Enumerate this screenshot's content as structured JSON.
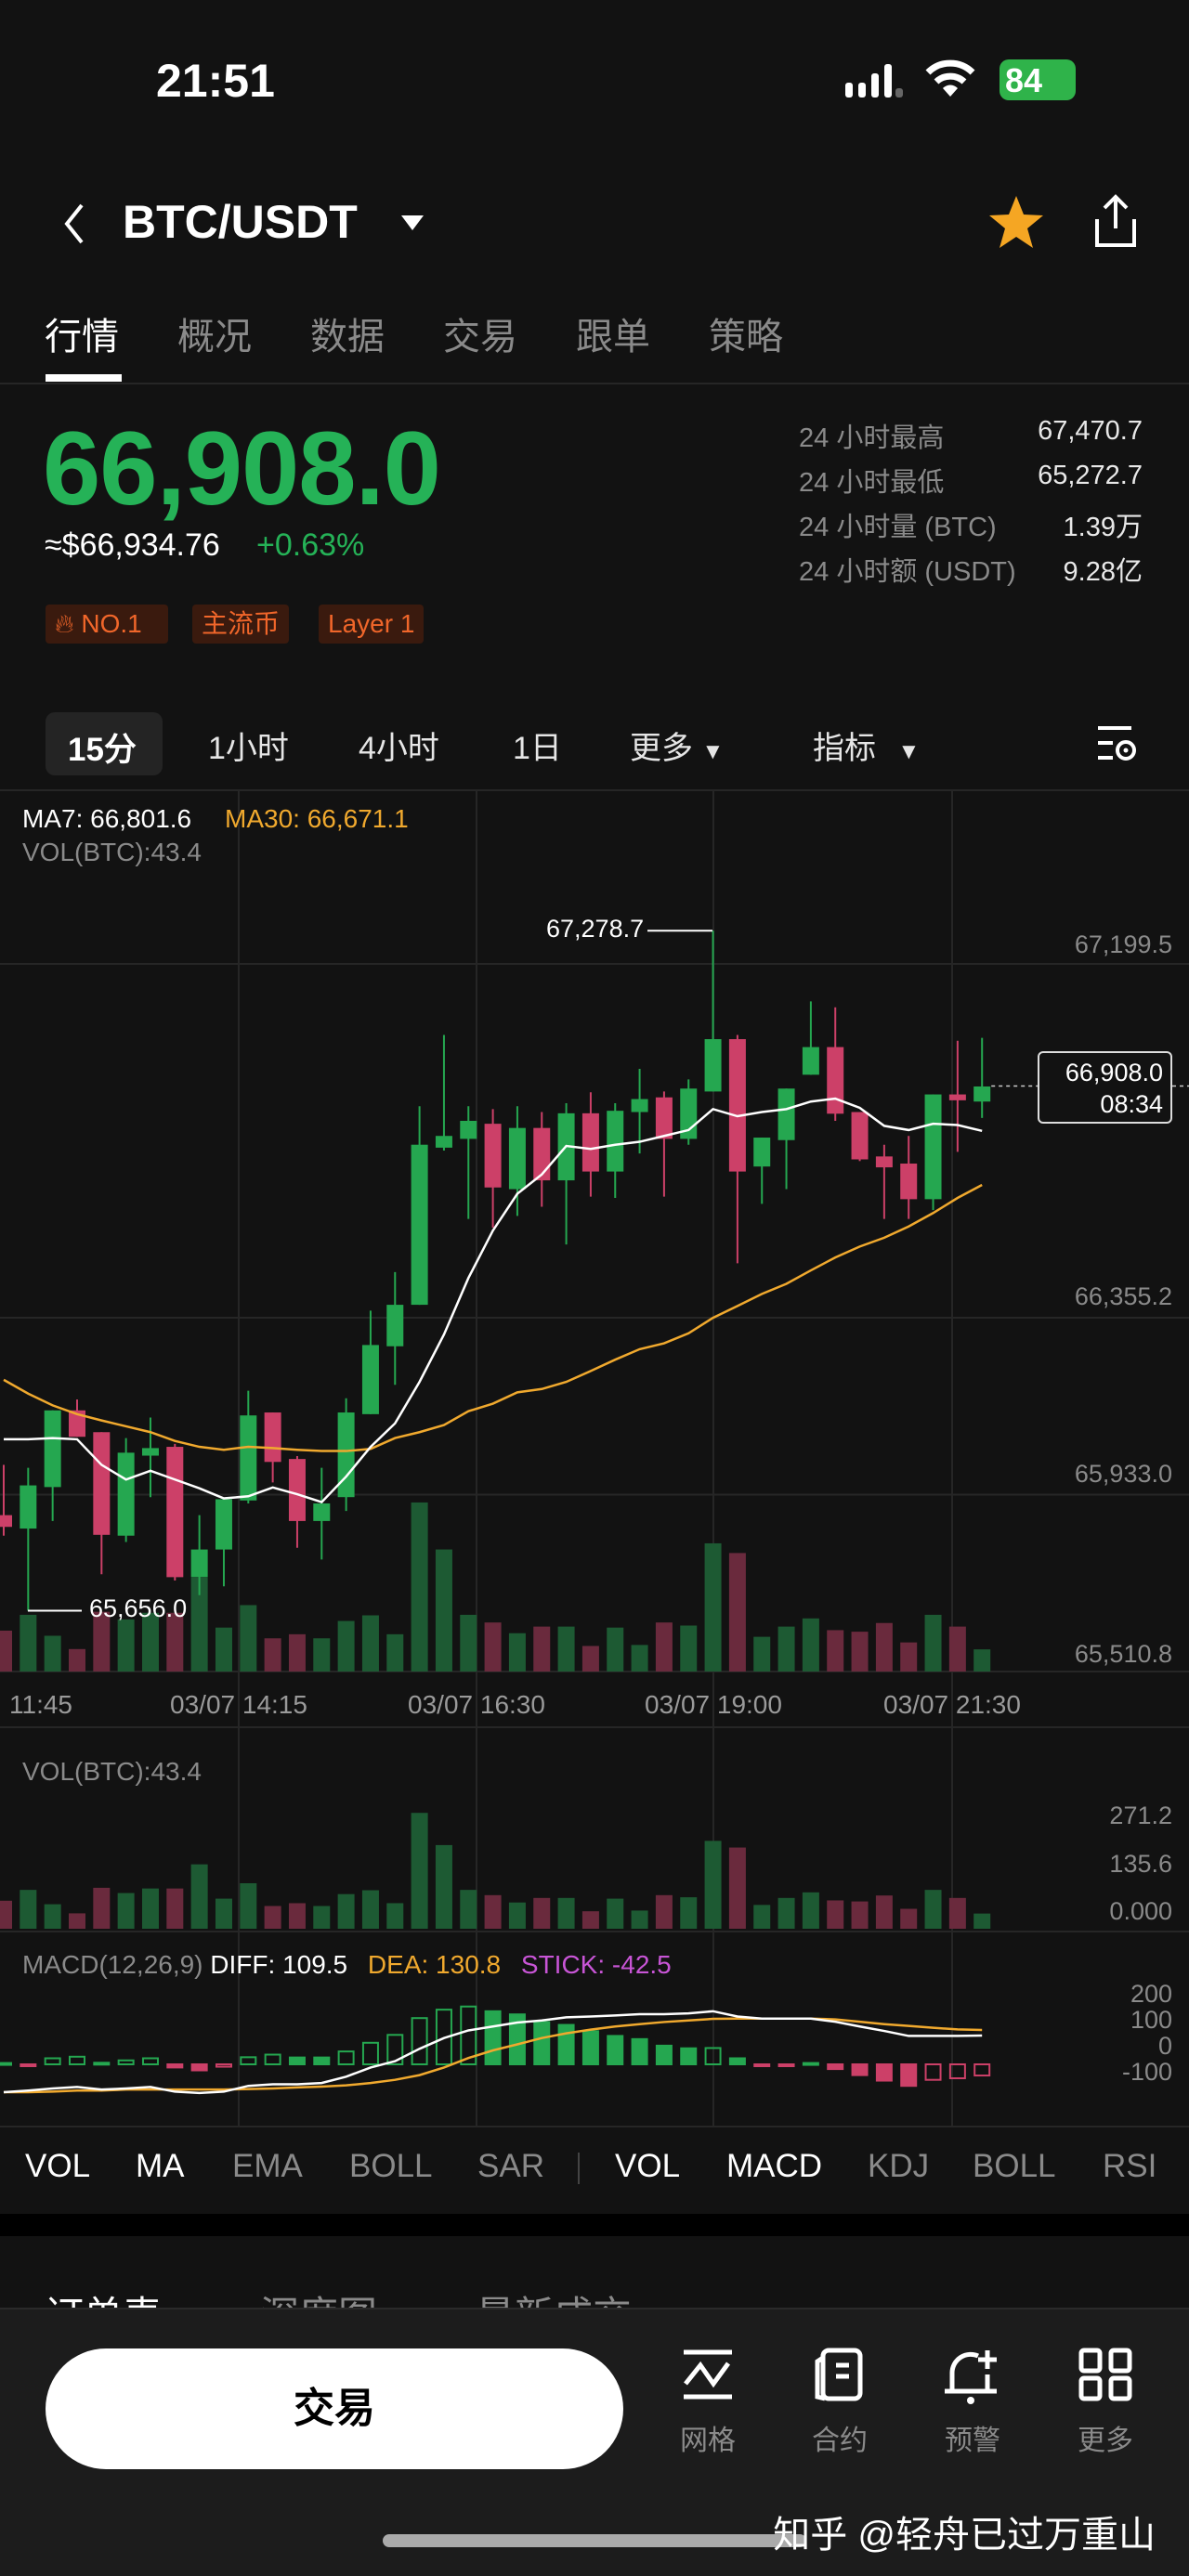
{
  "status_bar": {
    "time": "21:51",
    "battery": "84",
    "icons": [
      "signal-icon",
      "wifi-icon",
      "battery-charging-icon"
    ]
  },
  "header": {
    "title": "BTC/USDT",
    "icons": [
      "back-chevron-icon",
      "caret-down-icon",
      "star-icon",
      "share-icon"
    ],
    "star_color": "#f5a623"
  },
  "tabs": [
    {
      "label": "行情",
      "active": true
    },
    {
      "label": "概况"
    },
    {
      "label": "数据"
    },
    {
      "label": "交易"
    },
    {
      "label": "跟单"
    },
    {
      "label": "策略"
    }
  ],
  "ticker": {
    "last_price": "66,908.0",
    "usd_approx": "≈$66,934.76",
    "change_pct": "+0.63%",
    "tags": [
      "NO.1",
      "主流币",
      "Layer 1"
    ],
    "stats": [
      {
        "label": "24 小时最高",
        "value": "67,470.7"
      },
      {
        "label": "24 小时最低",
        "value": "65,272.7"
      },
      {
        "label": "24 小时量 (BTC)",
        "value": "1.39万"
      },
      {
        "label": "24 小时额 (USDT)",
        "value": "9.28亿"
      }
    ]
  },
  "timeframes": {
    "items": [
      "15分",
      "1小时",
      "4小时",
      "1日"
    ],
    "active": "15分",
    "more": "更多",
    "indicators": "指标"
  },
  "legend": {
    "ma7": "MA7: 66,801.6",
    "ma30": "MA30: 66,671.1",
    "vol": "VOL(BTC):43.4",
    "vol_panel": "VOL(BTC):43.4",
    "macd_name": "MACD(12,26,9)",
    "diff": "DIFF: 109.5",
    "dea": "DEA: 130.8",
    "stick": "STICK: -42.5"
  },
  "chart_data": {
    "type": "candlestick",
    "price_axis_ticks": [
      "67,199.5",
      "66,355.2",
      "65,933.0",
      "65,510.8"
    ],
    "price_axis_values": [
      67199.5,
      66355.2,
      65933.0,
      65510.8
    ],
    "x_tick_labels": [
      "11:45",
      "03/07 14:15",
      "03/07 16:30",
      "03/07 19:00",
      "03/07 21:30"
    ],
    "high_marker": "67,278.7",
    "low_marker": "65,656.0",
    "current_price_box": {
      "price": "66,908.0",
      "countdown": "08:34",
      "value": 66908.0
    },
    "ohlc": [
      [
        65884,
        66004,
        65835,
        65856
      ],
      [
        65852,
        65997,
        65656,
        65955
      ],
      [
        65951,
        66134,
        65870,
        66134
      ],
      [
        66134,
        66160,
        66071,
        66071
      ],
      [
        66082,
        66082,
        65743,
        65837
      ],
      [
        65835,
        66068,
        65820,
        66033
      ],
      [
        66026,
        66117,
        65927,
        66044
      ],
      [
        66047,
        66054,
        65728,
        65736
      ],
      [
        65736,
        65884,
        65693,
        65802
      ],
      [
        65802,
        65922,
        65714,
        65922
      ],
      [
        65919,
        66181,
        65912,
        66122
      ],
      [
        66129,
        66129,
        65962,
        66011
      ],
      [
        66018,
        66025,
        65806,
        65870
      ],
      [
        65870,
        65997,
        65778,
        65912
      ],
      [
        65927,
        66163,
        65894,
        66129
      ],
      [
        66125,
        66372,
        66125,
        66290
      ],
      [
        66287,
        66464,
        66195,
        66386
      ],
      [
        66386,
        66860,
        66386,
        66768
      ],
      [
        66761,
        67030,
        66754,
        66789
      ],
      [
        66782,
        66860,
        66591,
        66825
      ],
      [
        66818,
        66853,
        66570,
        66666
      ],
      [
        66662,
        66860,
        66598,
        66808
      ],
      [
        66808,
        66846,
        66620,
        66683
      ],
      [
        66683,
        66867,
        66530,
        66843
      ],
      [
        66843,
        66893,
        66644,
        66704
      ],
      [
        66704,
        66867,
        66641,
        66849
      ],
      [
        66846,
        66949,
        66747,
        66877
      ],
      [
        66881,
        66895,
        66644,
        66782
      ],
      [
        66782,
        66924,
        66768,
        66902
      ],
      [
        66895,
        67279,
        66895,
        67020
      ],
      [
        67020,
        67030,
        66485,
        66704
      ],
      [
        66716,
        66785,
        66627,
        66785
      ],
      [
        66779,
        66902,
        66662,
        66902
      ],
      [
        66935,
        67110,
        66935,
        67001
      ],
      [
        67001,
        67096,
        66825,
        66842
      ],
      [
        66846,
        66846,
        66729,
        66733
      ],
      [
        66740,
        66768,
        66591,
        66714
      ],
      [
        66723,
        66789,
        66591,
        66638
      ],
      [
        66638,
        66888,
        66612,
        66888
      ],
      [
        66888,
        67016,
        66751,
        66874
      ],
      [
        66871,
        67023,
        66832,
        66907
      ]
    ],
    "ma7": [
      66065,
      66065,
      66068,
      66065,
      66004,
      65969,
      65990,
      65969,
      65948,
      65924,
      65929,
      65950,
      65934,
      65915,
      65976,
      66047,
      66103,
      66202,
      66315,
      66450,
      66563,
      66651,
      66697,
      66765,
      66758,
      66768,
      66775,
      66789,
      66803,
      66853,
      66836,
      66846,
      66853,
      66871,
      66878,
      66856,
      66813,
      66803,
      66818,
      66815,
      66801
    ],
    "ma30": [
      66207,
      66174,
      66146,
      66125,
      66110,
      66096,
      66082,
      66061,
      66047,
      66040,
      66047,
      66044,
      66040,
      66037,
      66037,
      66042,
      66068,
      66082,
      66099,
      66132,
      66150,
      66177,
      66185,
      66202,
      66228,
      66255,
      66280,
      66294,
      66318,
      66355,
      66383,
      66412,
      66436,
      66468,
      66499,
      66525,
      66546,
      66573,
      66605,
      66641,
      66672
    ],
    "volume": [
      80,
      111,
      70,
      44,
      117,
      102,
      115,
      115,
      184,
      86,
      130,
      65,
      73,
      65,
      99,
      110,
      73,
      331,
      239,
      111,
      96,
      75,
      88,
      88,
      50,
      86,
      52,
      96,
      90,
      251,
      232,
      68,
      88,
      104,
      81,
      78,
      95,
      57,
      111,
      88,
      43.4
    ],
    "volume_axis_ticks": [
      "271.2",
      "135.6",
      "0.000"
    ],
    "macd_axis_ticks": [
      "200",
      "100",
      "0",
      "-100"
    ],
    "macd_diff": [
      -106,
      -100,
      -92,
      -86,
      -96,
      -92,
      -86,
      -104,
      -109,
      -104,
      -82,
      -76,
      -76,
      -71,
      -47,
      -12,
      12,
      59,
      100,
      129,
      144,
      159,
      167,
      179,
      182,
      186,
      191,
      191,
      194,
      202,
      182,
      174,
      174,
      174,
      162,
      144,
      127,
      108,
      108,
      108,
      109.5
    ],
    "macd_dea": [
      -106,
      -106,
      -104,
      -100,
      -100,
      -96,
      -96,
      -96,
      -96,
      -96,
      -94,
      -92,
      -88,
      -85,
      -80,
      -71,
      -59,
      -41,
      -12,
      24,
      53,
      76,
      100,
      118,
      132,
      144,
      153,
      161,
      167,
      173,
      174,
      174,
      174,
      174,
      171,
      162,
      153,
      146,
      139,
      133,
      130.8
    ],
    "macd_stick": [
      5,
      -3,
      23,
      29,
      6,
      15,
      23,
      -12,
      -23,
      -9,
      27,
      37,
      26,
      26,
      49,
      82,
      112,
      176,
      208,
      220,
      202,
      190,
      161,
      150,
      126,
      108,
      96,
      71,
      61,
      62,
      23,
      -3,
      -3,
      5,
      -18,
      -41,
      -62,
      -82,
      -59,
      -53,
      -42.5
    ],
    "colors": {
      "up": "#25a750",
      "down": "#cc4068",
      "ma7": "#ffffff",
      "ma30": "#f0a92e",
      "stick_label": "#c855d6"
    }
  },
  "indicator_bar": {
    "main": [
      {
        "label": "VOL",
        "on": true
      },
      {
        "label": "MA",
        "on": true
      },
      {
        "label": "EMA"
      },
      {
        "label": "BOLL"
      },
      {
        "label": "SAR"
      }
    ],
    "sub": [
      {
        "label": "VOL",
        "on": true
      },
      {
        "label": "MACD",
        "on": true
      },
      {
        "label": "KDJ"
      },
      {
        "label": "BOLL"
      },
      {
        "label": "RSI"
      }
    ]
  },
  "lower_tabs": [
    "订单表",
    "深度图",
    "最新成交"
  ],
  "bottom_bar": {
    "trade_button": "交易",
    "actions": [
      {
        "label": "网格",
        "icon": "grid-bot-icon"
      },
      {
        "label": "合约",
        "icon": "contract-icon"
      },
      {
        "label": "预警",
        "icon": "bell-plus-icon"
      },
      {
        "label": "更多",
        "icon": "apps-icon"
      }
    ]
  },
  "watermark": "知乎 @轻舟已过万重山"
}
